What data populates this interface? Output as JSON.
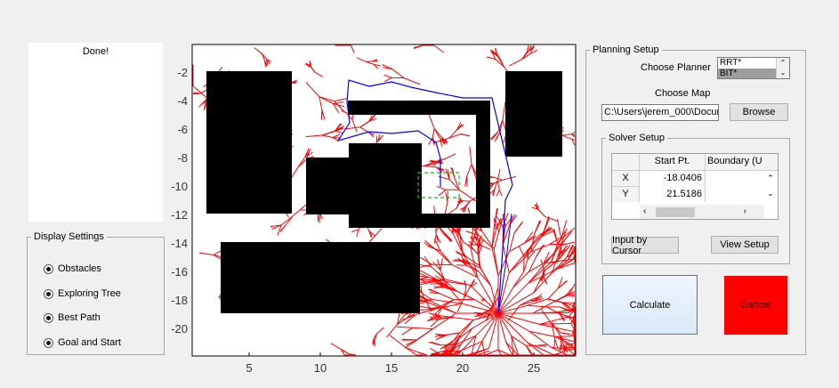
{
  "status": {
    "text": "Done!"
  },
  "display_settings": {
    "title": "Display Settings",
    "options": [
      {
        "label": "Obstacles",
        "checked": true
      },
      {
        "label": "Exploring Tree",
        "checked": true
      },
      {
        "label": "Best Path",
        "checked": true
      },
      {
        "label": "Goal and Start",
        "checked": true
      }
    ]
  },
  "planning_setup": {
    "title": "Planning Setup",
    "choose_planner_label": "Choose Planner",
    "planner_options": [
      "RRT*",
      "BIT*"
    ],
    "selected_planner": "BIT*",
    "choose_map_label": "Choose Map",
    "map_path": "C:\\Users\\jerem_000\\Docur",
    "browse_label": "Browse",
    "solver_setup": {
      "title": "Solver Setup",
      "table": {
        "columns": [
          "Start Pt.",
          "Boundary (U"
        ],
        "rows": [
          {
            "label": "X",
            "start": "-18.0406"
          },
          {
            "label": "Y",
            "start": "21.5186"
          }
        ]
      },
      "input_by_cursor_label": "Input by Cursor",
      "view_setup_label": "View Setup"
    }
  },
  "actions": {
    "calculate_label": "Calculate",
    "cancel_label": "Cancel"
  },
  "colors": {
    "tree": "#ff0000",
    "path": "#0000ff",
    "goal": "#00cc00",
    "cancel": "#ff0000",
    "obstacle": "#000000"
  },
  "plot": {
    "x_ticks": [
      "5",
      "10",
      "15",
      "20",
      "25"
    ],
    "y_ticks": [
      "-2",
      "-4",
      "-6",
      "-8",
      "-10",
      "-12",
      "-14",
      "-16",
      "-18",
      "-20"
    ],
    "xlim": [
      1,
      28
    ],
    "ylim": [
      -21.5,
      -0.5
    ]
  }
}
